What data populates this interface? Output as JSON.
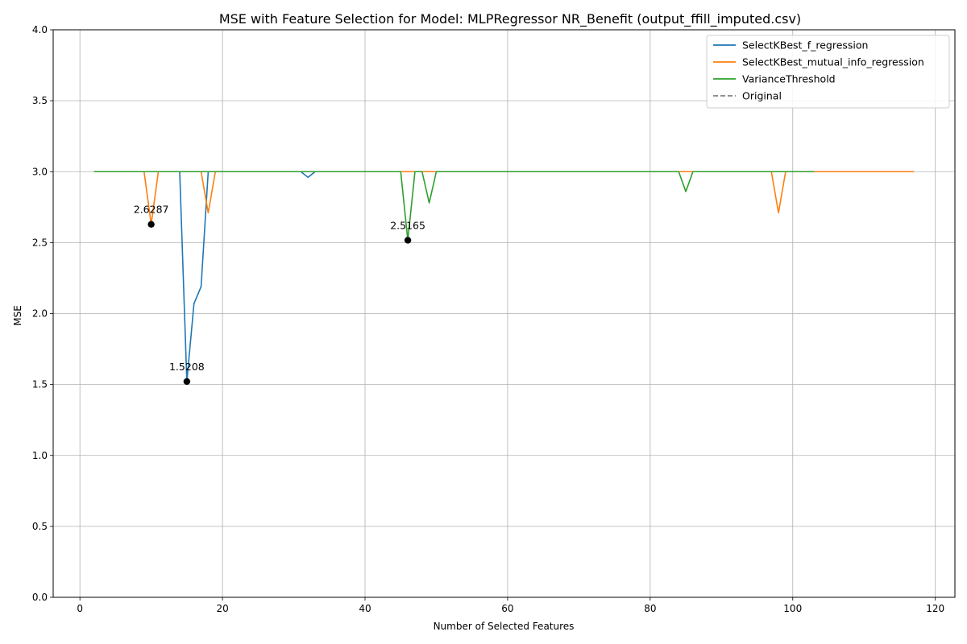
{
  "chart_data": {
    "type": "line",
    "title": "MSE with Feature Selection for Model: MLPRegressor NR_Benefit (output_ffill_imputed.csv)",
    "xlabel": "Number of Selected Features",
    "ylabel": "MSE",
    "xlim": [
      -3.75,
      122.75
    ],
    "ylim": [
      0,
      4
    ],
    "xticks": [
      0,
      20,
      40,
      60,
      80,
      100,
      120
    ],
    "yticks": [
      0.0,
      0.5,
      1.0,
      1.5,
      2.0,
      2.5,
      3.0,
      3.5,
      4.0
    ],
    "xtick_labels": [
      "0",
      "20",
      "40",
      "60",
      "80",
      "100",
      "120"
    ],
    "ytick_labels": [
      "0.0",
      "0.5",
      "1.0",
      "1.5",
      "2.0",
      "2.5",
      "3.0",
      "3.5",
      "4.0"
    ],
    "grid": true,
    "legend_position": "top-right",
    "series": [
      {
        "name": "SelectKBest_f_regression",
        "color": "#1f77b4",
        "style": "solid",
        "x": [
          2,
          14,
          15,
          16,
          17,
          18,
          31,
          32,
          33,
          103
        ],
        "y": [
          3.0,
          3.0,
          1.5208,
          2.07,
          2.19,
          3.0,
          3.0,
          2.96,
          3.0,
          3.0
        ]
      },
      {
        "name": "SelectKBest_mutual_info_regression",
        "color": "#ff7f0e",
        "style": "solid",
        "x": [
          2,
          9,
          10,
          11,
          17,
          18,
          19,
          97,
          98,
          99,
          117
        ],
        "y": [
          3.0,
          3.0,
          2.6287,
          3.0,
          3.0,
          2.71,
          3.0,
          3.0,
          2.71,
          3.0,
          3.0
        ]
      },
      {
        "name": "VarianceThreshold",
        "color": "#2ca02c",
        "style": "solid",
        "x": [
          2,
          45,
          46,
          47,
          48,
          49,
          50,
          84,
          85,
          86,
          103
        ],
        "y": [
          3.0,
          3.0,
          2.5165,
          3.0,
          3.0,
          2.78,
          3.0,
          3.0,
          2.86,
          3.0,
          3.0
        ]
      },
      {
        "name": "Original",
        "color": "#808080",
        "style": "dashed",
        "x": [],
        "y": []
      }
    ],
    "annotations": [
      {
        "x": 10,
        "y": 2.6287,
        "label": "2.6287"
      },
      {
        "x": 15,
        "y": 1.5208,
        "label": "1.5208"
      },
      {
        "x": 46,
        "y": 2.5165,
        "label": "2.5165"
      }
    ]
  }
}
